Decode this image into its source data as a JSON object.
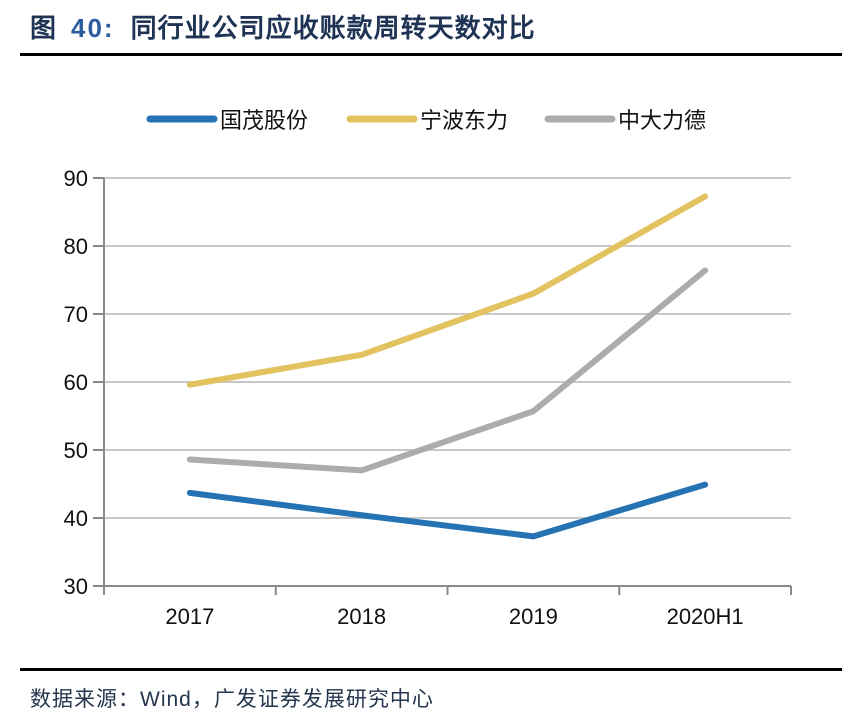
{
  "figure": {
    "label_prefix": "图",
    "number": "40:",
    "title": "同行业公司应收账款周转天数对比"
  },
  "chart_data": {
    "type": "line",
    "title": "同行业公司应收账款周转天数对比",
    "categories": [
      "2017",
      "2018",
      "2019",
      "2020H1"
    ],
    "series": [
      {
        "name": "国茂股份",
        "color": "#2573B3",
        "values": [
          43.7,
          40.4,
          37.3,
          44.9
        ]
      },
      {
        "name": "宁波东力",
        "color": "#E2C35F",
        "values": [
          59.6,
          64.0,
          73.0,
          87.3
        ]
      },
      {
        "name": "中大力德",
        "color": "#ACACAC",
        "values": [
          48.6,
          47.0,
          55.7,
          76.4
        ]
      }
    ],
    "xlabel": "",
    "ylabel": "",
    "ylim": [
      30,
      90
    ],
    "yticks": [
      30,
      40,
      50,
      60,
      70,
      80,
      90
    ],
    "grid": "horizontal",
    "legend_position": "top",
    "colors": {
      "grid_line": "#C8C8C8",
      "axis_line": "#898989",
      "tick_label": "#111111"
    }
  },
  "source": {
    "text": "数据来源：Wind，广发证券发展研究中心"
  }
}
